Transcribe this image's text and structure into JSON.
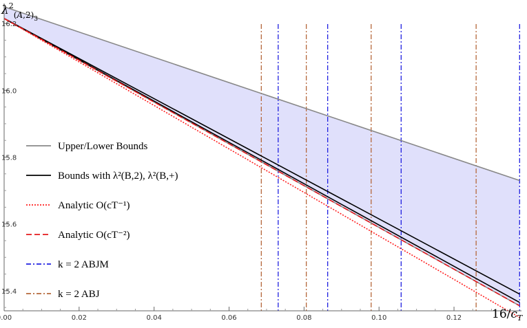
{
  "chart_data": {
    "type": "line",
    "title": "",
    "xlabel": "16/cT",
    "ylabel": "λ²(A,2)3",
    "xlim": [
      0,
      0.138
    ],
    "ylim": [
      15.34,
      16.26
    ],
    "x_ticks": [
      0.0,
      0.02,
      0.04,
      0.06,
      0.08,
      0.1,
      0.12
    ],
    "x_tick_labels": [
      "0.00",
      "0.02",
      "0.04",
      "0.06",
      "0.08",
      "0.10",
      "0.12"
    ],
    "y_ticks": [
      15.4,
      15.6,
      15.8,
      16.0,
      16.2
    ],
    "y_tick_labels": [
      "15.4",
      "15.6",
      "15.8",
      "16.0",
      "16.2"
    ],
    "shaded_region": {
      "fill": "#e0e0fb",
      "upper": [
        [
          0,
          16.25
        ],
        [
          0.1375,
          15.73
        ]
      ],
      "lower": [
        [
          0,
          16.215
        ],
        [
          0.1375,
          15.355
        ]
      ]
    },
    "series": [
      {
        "name": "Upper/Lower Bounds",
        "color": "#888888",
        "dash": "solid",
        "width": 1.6,
        "points": [
          [
            0,
            16.25
          ],
          [
            0.1375,
            15.73
          ]
        ]
      },
      {
        "name": "Upper/Lower Bounds",
        "color": "#888888",
        "dash": "solid",
        "width": 1.6,
        "points": [
          [
            0,
            16.215
          ],
          [
            0.1375,
            15.355
          ]
        ]
      },
      {
        "name": "Bounds with",
        "color": "#000000",
        "dash": "solid",
        "width": 1.6,
        "points": [
          [
            0,
            16.215
          ],
          [
            0.1375,
            15.39
          ]
        ]
      },
      {
        "name": "Bounds with",
        "color": "#000000",
        "dash": "solid",
        "width": 1.6,
        "points": [
          [
            0,
            16.215
          ],
          [
            0.1375,
            15.365
          ]
        ]
      },
      {
        "name": "Analytic O(cT^-2)",
        "color": "#e41a1c",
        "dash": "8,4",
        "width": 1.6,
        "points": [
          [
            0,
            16.215
          ],
          [
            0.1375,
            15.355
          ]
        ]
      },
      {
        "name": "Analytic O(cT^-1)",
        "color": "#ff2020",
        "dash": "2,2",
        "width": 1.6,
        "points": [
          [
            0,
            16.215
          ],
          [
            0.1375,
            15.32
          ]
        ]
      }
    ],
    "vlines": [
      {
        "name": "k = 2 ABJM",
        "color": "#1f1fe0",
        "dash": "7,3,2,3",
        "x": [
          0.0731,
          0.0863,
          0.1059,
          0.1375
        ]
      },
      {
        "name": "k = 2 ABJ",
        "color": "#b5673a",
        "dash": "7,3,2,3",
        "x": [
          0.0686,
          0.0806,
          0.0979,
          0.1259
        ]
      }
    ],
    "legend": {
      "placement": "left",
      "entries": [
        {
          "label": "Upper/Lower Bounds",
          "color": "#888888",
          "dash": "solid"
        },
        {
          "label": "Bounds with λ²(B,2), λ²(B,+)",
          "color": "#000000",
          "dash": "solid"
        },
        {
          "label": "Analytic O(cT⁻¹)",
          "color": "#ff2020",
          "dash": "2,2"
        },
        {
          "label": "Analytic O(cT⁻²)",
          "color": "#e41a1c",
          "dash": "8,4"
        },
        {
          "label": "k = 2 ABJM",
          "color": "#1f1fe0",
          "dash": "7,3,2,3"
        },
        {
          "label": "k = 2 ABJ",
          "color": "#b5673a",
          "dash": "7,3,2,3"
        }
      ]
    }
  }
}
